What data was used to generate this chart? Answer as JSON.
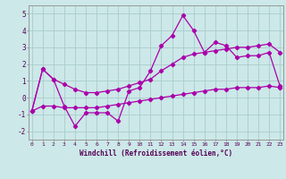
{
  "xlabel": "Windchill (Refroidissement éolien,°C)",
  "bg_color": "#cce8e8",
  "line_color": "#aa00aa",
  "grid_color": "#aacccc",
  "x_hours": [
    0,
    1,
    2,
    3,
    4,
    5,
    6,
    7,
    8,
    9,
    10,
    11,
    12,
    13,
    14,
    15,
    16,
    17,
    18,
    19,
    20,
    21,
    22,
    23
  ],
  "main_y": [
    -0.8,
    1.7,
    1.1,
    -0.5,
    -1.7,
    -0.9,
    -0.9,
    -0.9,
    -1.4,
    0.4,
    0.6,
    1.6,
    3.1,
    3.7,
    4.9,
    4.0,
    2.7,
    3.3,
    3.1,
    2.4,
    2.5,
    2.5,
    2.7,
    0.7
  ],
  "upper_y": [
    -0.8,
    1.7,
    1.1,
    0.8,
    0.5,
    0.3,
    0.3,
    0.4,
    0.5,
    0.7,
    0.9,
    1.1,
    1.6,
    2.0,
    2.4,
    2.6,
    2.7,
    2.8,
    2.9,
    3.0,
    3.0,
    3.1,
    3.2,
    2.7
  ],
  "lower_y": [
    -0.8,
    -0.5,
    -0.5,
    -0.6,
    -0.6,
    -0.6,
    -0.6,
    -0.5,
    -0.4,
    -0.3,
    -0.2,
    -0.1,
    0.0,
    0.1,
    0.2,
    0.3,
    0.4,
    0.5,
    0.5,
    0.6,
    0.6,
    0.6,
    0.7,
    0.6
  ],
  "ylim": [
    -2.5,
    5.5
  ],
  "yticks": [
    -2,
    -1,
    0,
    1,
    2,
    3,
    4,
    5
  ],
  "xlim": [
    -0.3,
    23.3
  ]
}
